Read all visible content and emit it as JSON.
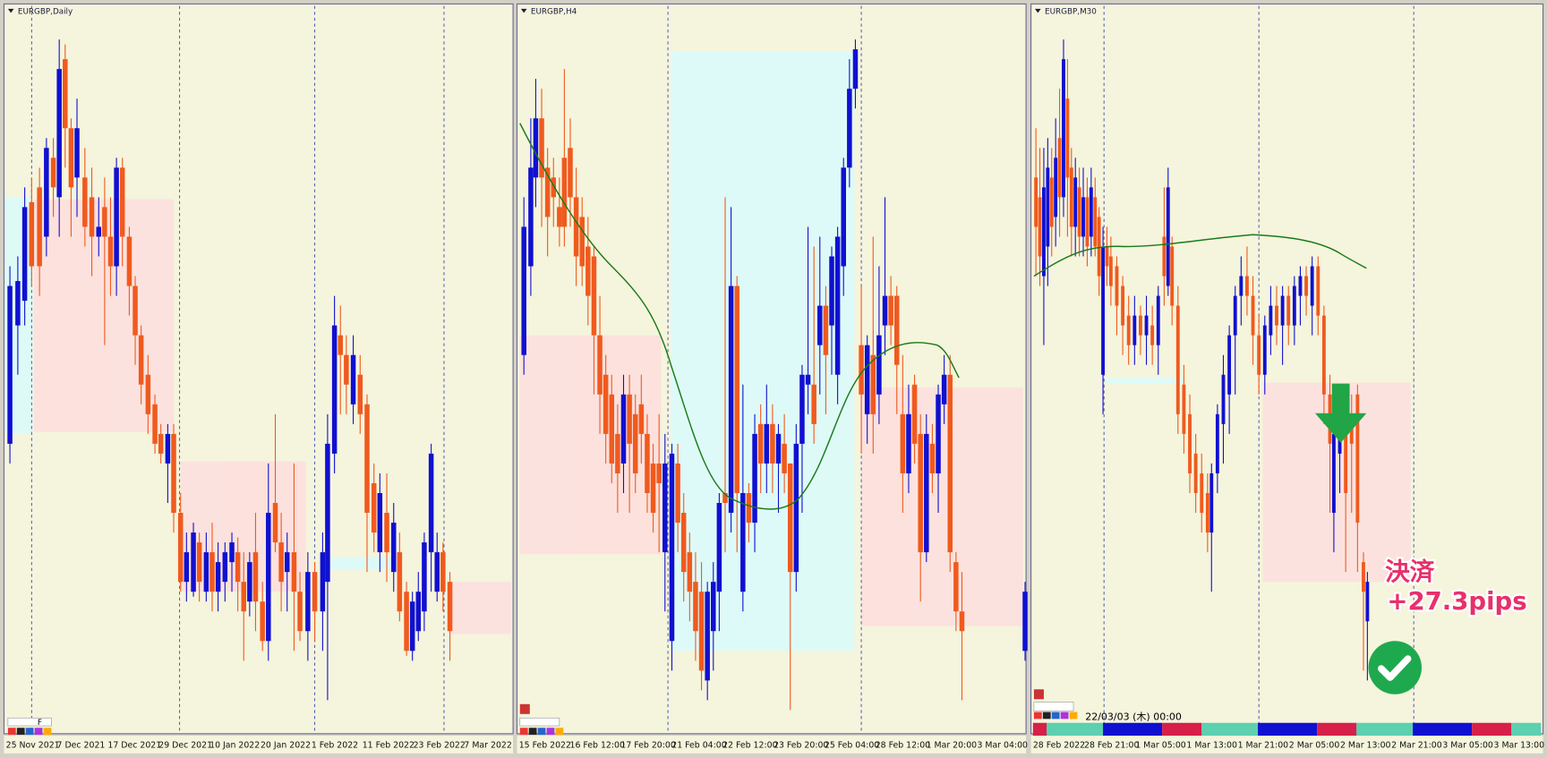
{
  "panels": [
    {
      "title": "EURGBP,Daily",
      "x_labels": [
        "25 Nov 2021",
        "7 Dec 2021",
        "17 Dec 2021",
        "29 Dec 2021",
        "10 Jan 2022",
        "20 Jan 2022",
        "1 Feb 2022",
        "11 Feb 2022",
        "23 Feb 2022",
        "7 Mar 2022"
      ]
    },
    {
      "title": "EURGBP,H4",
      "x_labels": [
        "15 Feb 2022",
        "16 Feb 12:00",
        "17 Feb 20:00",
        "21 Feb 04:00",
        "22 Feb 12:00",
        "23 Feb 20:00",
        "25 Feb 04:00",
        "28 Feb 12:00",
        "1 Mar 20:00",
        "3 Mar 04:00"
      ]
    },
    {
      "title": "EURGBP,M30",
      "x_labels": [
        "28 Feb 2022",
        "28 Feb 21:00",
        "1 Mar 05:00",
        "1 Mar 13:00",
        "1 Mar 21:00",
        "2 Mar 05:00",
        "2 Mar 13:00",
        "2 Mar 21:00",
        "3 Mar 05:00",
        "3 Mar 13:00"
      ]
    }
  ],
  "toolbar_label": "F",
  "annotation": {
    "line1": "決済",
    "line2": "+27.3pips"
  },
  "status_time": "22/03/03 (木) 00:00"
}
